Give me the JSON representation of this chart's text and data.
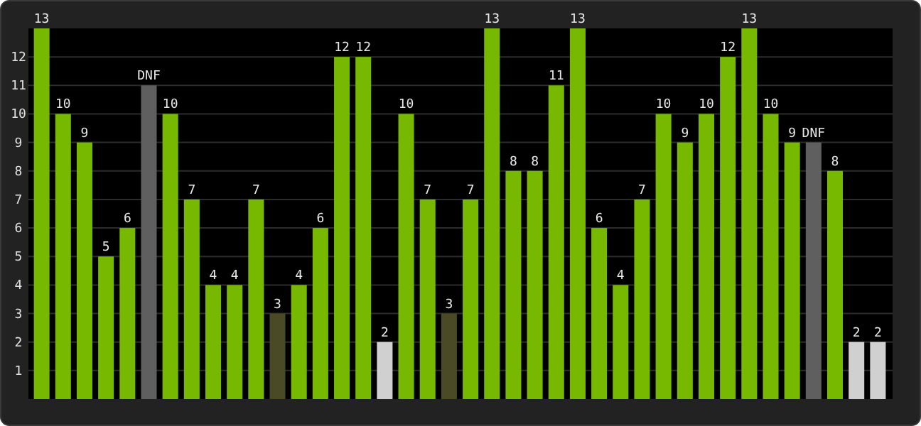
{
  "chart_data": {
    "type": "bar",
    "categories": [
      null,
      null,
      null,
      null,
      null,
      null,
      null,
      null,
      null,
      null,
      null,
      null,
      null,
      null,
      null,
      null,
      null,
      null,
      null,
      null,
      null,
      null,
      null,
      null,
      null,
      null,
      null,
      null,
      null,
      null,
      null,
      null,
      null,
      null,
      null,
      null,
      null,
      null,
      null,
      null
    ],
    "values": [
      13,
      10,
      9,
      5,
      6,
      11,
      10,
      7,
      4,
      4,
      7,
      3,
      4,
      6,
      12,
      12,
      2,
      10,
      7,
      3,
      7,
      13,
      8,
      8,
      11,
      13,
      6,
      4,
      7,
      10,
      9,
      10,
      12,
      13,
      10,
      9,
      9,
      8,
      2,
      2
    ],
    "colors": [
      "#76b900",
      "#76b900",
      "#76b900",
      "#76b900",
      "#76b900",
      "#5f5f5f",
      "#76b900",
      "#76b900",
      "#76b900",
      "#76b900",
      "#76b900",
      "#4a4a26",
      "#76b900",
      "#76b900",
      "#76b900",
      "#76b900",
      "#d0d0d0",
      "#76b900",
      "#76b900",
      "#4a4a26",
      "#76b900",
      "#76b900",
      "#76b900",
      "#76b900",
      "#76b900",
      "#76b900",
      "#76b900",
      "#76b900",
      "#76b900",
      "#76b900",
      "#76b900",
      "#76b900",
      "#76b900",
      "#76b900",
      "#76b900",
      "#76b900",
      "#5f5f5f",
      "#76b900",
      "#d0d0d0",
      "#d0d0d0"
    ],
    "value_labels": [
      "13",
      "10",
      "9",
      "5",
      "6",
      "DNF",
      "10",
      "7",
      "4",
      "4",
      "7",
      "3",
      "4",
      "6",
      "12",
      "12",
      "2",
      "10",
      "7",
      "3",
      "7",
      "13",
      "8",
      "8",
      "11",
      "13",
      "6",
      "4",
      "7",
      "10",
      "9",
      "10",
      "12",
      "13",
      "10",
      "9",
      "DNF",
      "8",
      "2",
      "2"
    ],
    "ylim": [
      0,
      13
    ],
    "yticks": [
      1,
      2,
      3,
      4,
      5,
      6,
      7,
      8,
      9,
      10,
      11,
      12
    ],
    "grid": "y"
  }
}
